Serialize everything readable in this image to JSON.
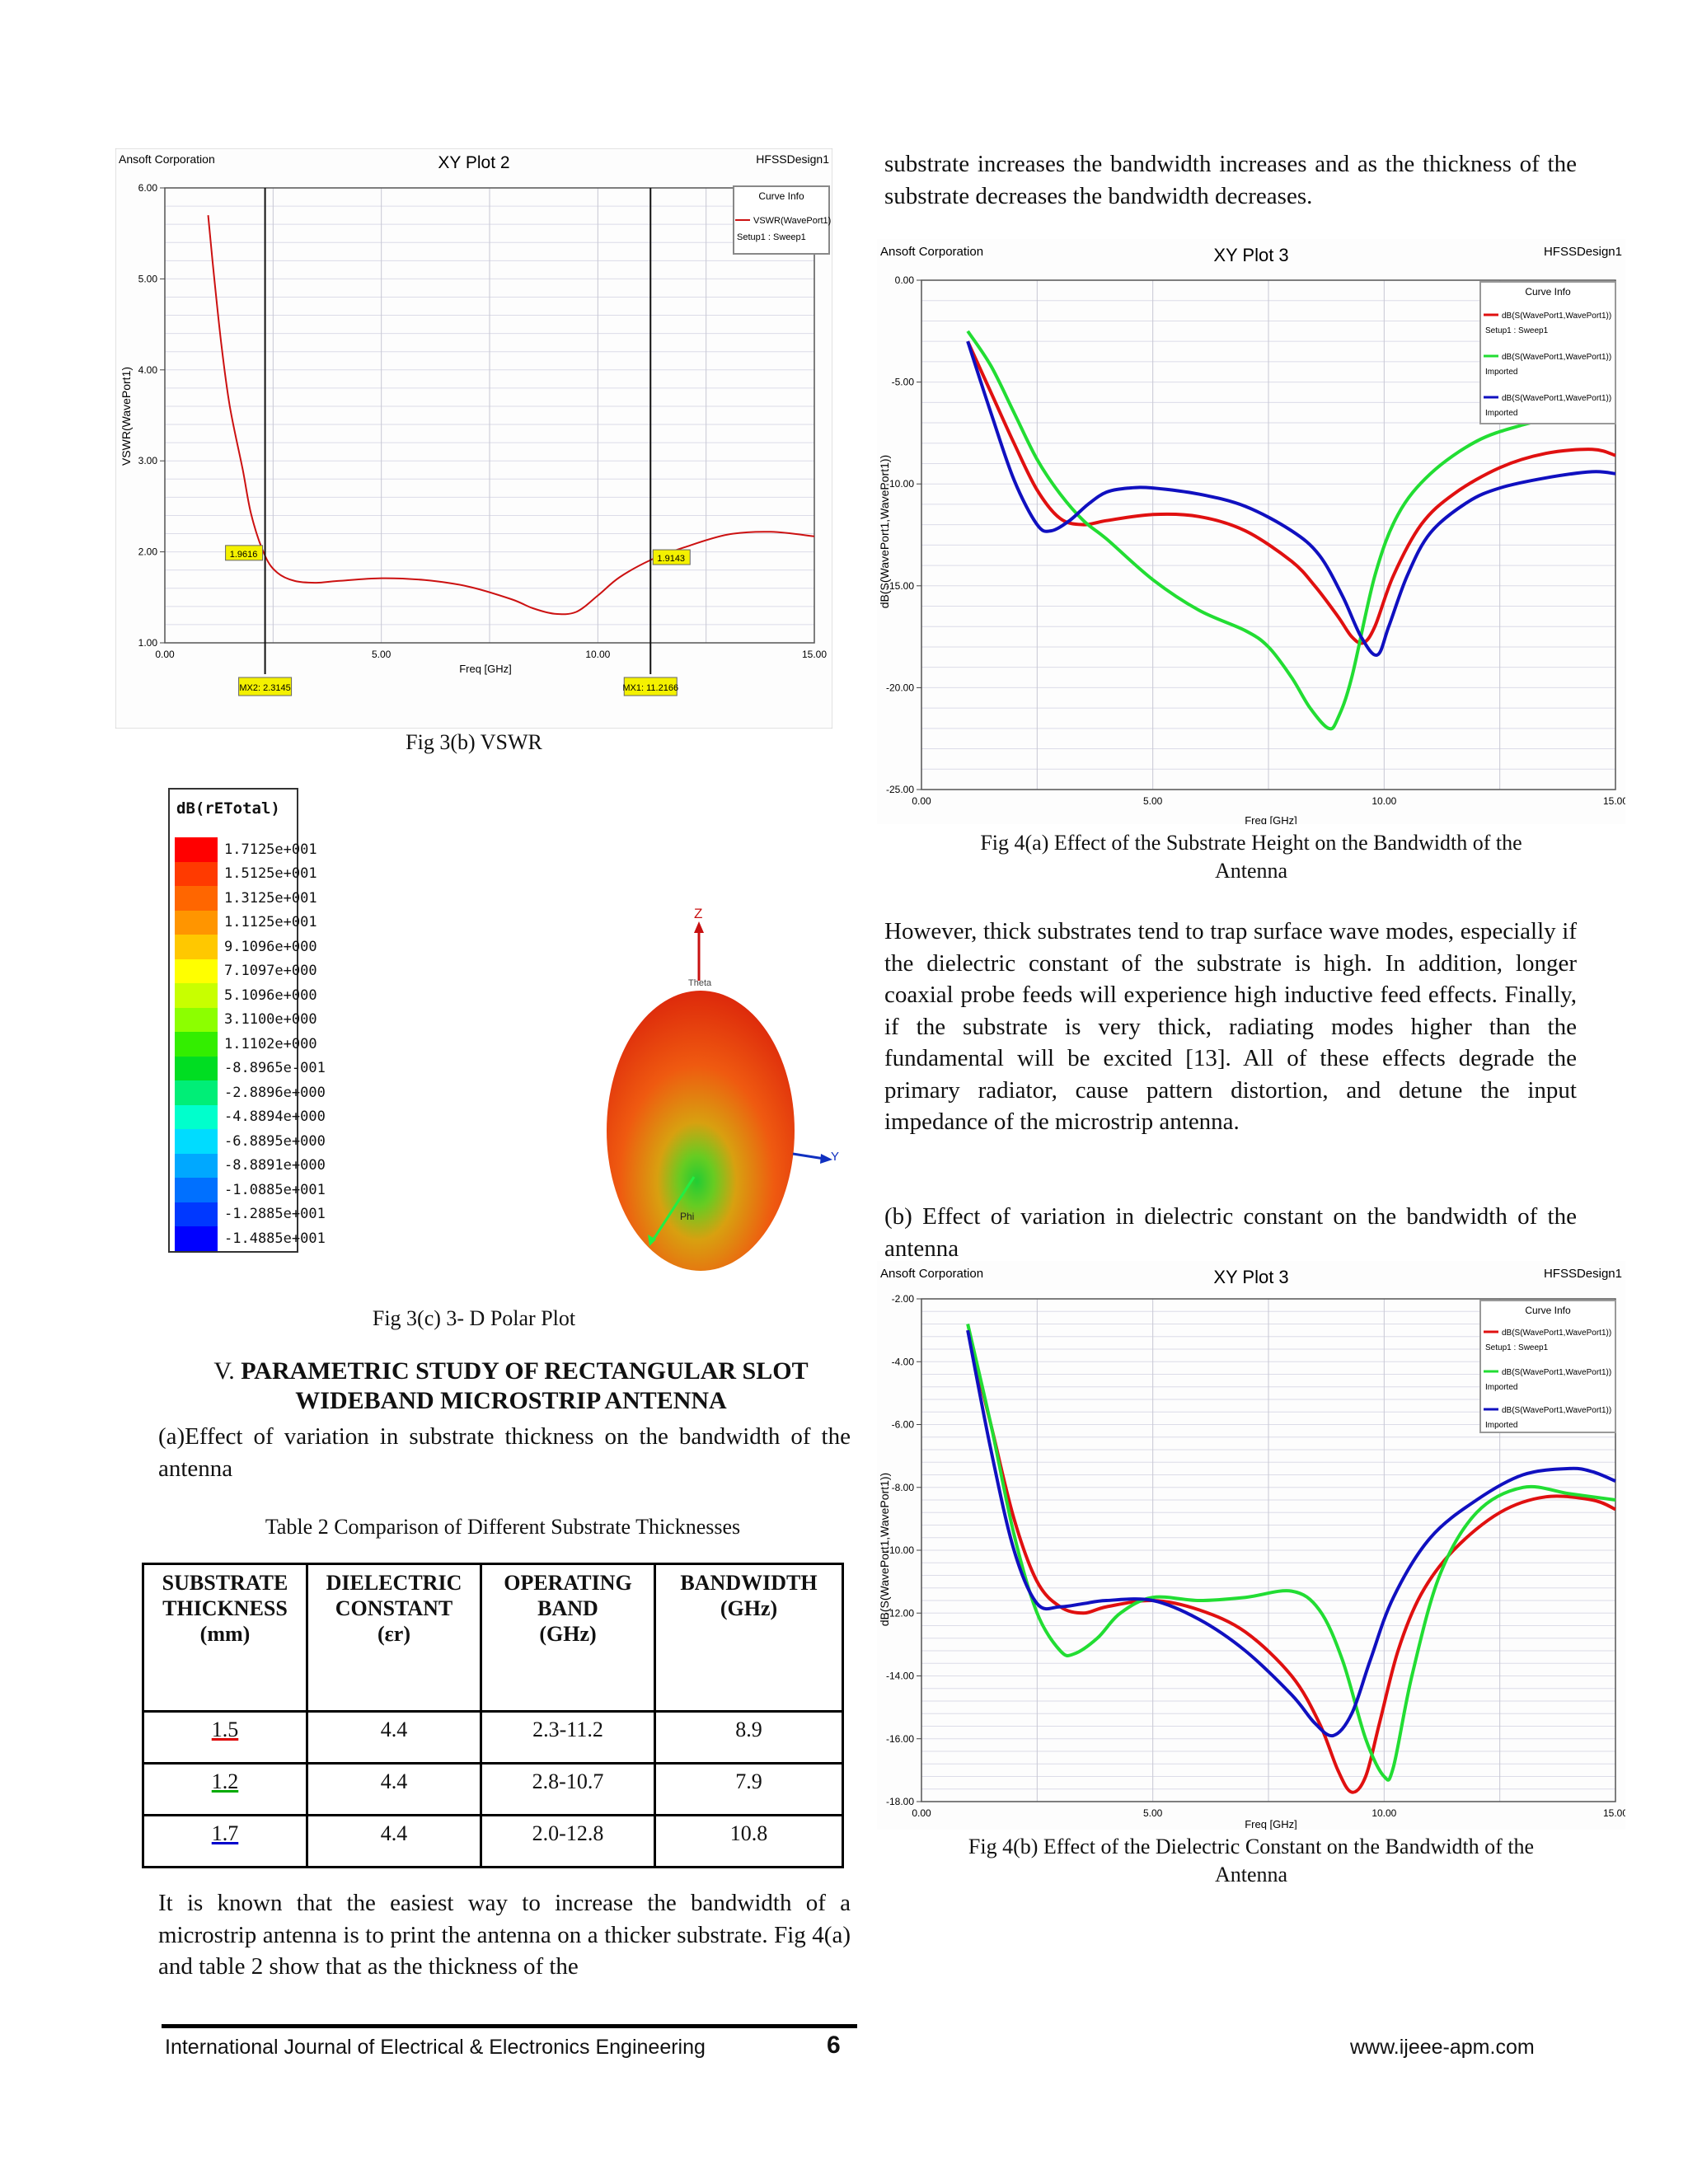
{
  "fig3b": {
    "caption": "Fig 3(b) VSWR",
    "company": "Ansoft Corporation",
    "title": "XY Plot 2",
    "design": "HFSSDesign1",
    "ylabel": "VSWR(WavePort1)",
    "xlabel": "Freq [GHz]",
    "legend_title": "Curve Info",
    "legend_line1": "VSWR(WavePort1)",
    "legend_line2": "Setup1 : Sweep1",
    "marker1_value": "1.9616",
    "marker2_value": "1.9143",
    "marker1_x": "MX2: 2.3145",
    "marker2_x": "MX1: 11.2166"
  },
  "fig3c": {
    "caption": "Fig 3(c) 3- D Polar Plot",
    "legend_title": "dB(rETotal)",
    "legend_values": [
      "1.7125e+001",
      "1.5125e+001",
      "1.3125e+001",
      "1.1125e+001",
      "9.1096e+000",
      "7.1097e+000",
      "5.1096e+000",
      "3.1100e+000",
      "1.1102e+000",
      "-8.8965e-001",
      "-2.8896e+000",
      "-4.8894e+000",
      "-6.8895e+000",
      "-8.8891e+000",
      "-1.0885e+001",
      "-1.2885e+001",
      "-1.4885e+001"
    ],
    "legend_colors": [
      "#ff0000",
      "#ff3a00",
      "#ff6600",
      "#ff9500",
      "#ffc800",
      "#ffff00",
      "#c8ff00",
      "#8cff00",
      "#33ee00",
      "#00dd22",
      "#00ee77",
      "#00ffcc",
      "#00dcff",
      "#00a8ff",
      "#0070ff",
      "#0038ff",
      "#0000ff"
    ],
    "axis_z": "Z",
    "axis_y": "Y",
    "theta_label": "Theta",
    "phi_label": "Phi"
  },
  "section": {
    "heading_num": "V.",
    "heading_line1": "PARAMETRIC STUDY OF RECTANGULAR SLOT",
    "heading_line2": "WIDEBAND MICROSTRIP ANTENNA",
    "sub_a": "(a)Effect of variation in substrate thickness on the bandwidth of the antenna"
  },
  "table2": {
    "caption": "Table 2 Comparison of Different Substrate Thicknesses",
    "headers": [
      [
        "SUBSTRATE",
        "THICKNESS",
        "(mm)"
      ],
      [
        "DIELECTRIC",
        "CONSTANT",
        "(εr)"
      ],
      [
        "OPERATING",
        "BAND",
        "(GHz)"
      ],
      [
        "BANDWIDTH",
        "(GHz)",
        ""
      ]
    ],
    "rows": [
      [
        "1.5",
        "4.4",
        "2.3-11.2",
        "8.9"
      ],
      [
        "1.2",
        "4.4",
        "2.8-10.7",
        "7.9"
      ],
      [
        "1.7",
        "4.4",
        "2.0-12.8",
        "10.8"
      ]
    ]
  },
  "left_para": "It is known that the easiest way to increase the bandwidth of a microstrip antenna is to print the antenna on a thicker substrate. Fig 4(a) and table 2 show that as the thickness of the",
  "right_para1": "substrate increases the bandwidth increases and as the thickness of the substrate decreases the bandwidth decreases.",
  "fig4a": {
    "caption_line1": "Fig 4(a) Effect of the Substrate Height on the Bandwidth of the",
    "caption_line2": "Antenna",
    "company": "Ansoft Corporation",
    "title": "XY Plot 3",
    "design": "HFSSDesign1",
    "ylabel": "dB(S(WavePort1,WavePort1))",
    "xlabel": "Freq [GHz]",
    "legend_title": "Curve Info",
    "legend": [
      {
        "name": "dB(S(WavePort1,WavePort1))",
        "sub": "Setup1 : Sweep1",
        "color": "#e01010"
      },
      {
        "name": "dB(S(WavePort1,WavePort1))",
        "sub": "Imported",
        "color": "#22dd33"
      },
      {
        "name": "dB(S(WavePort1,WavePort1))",
        "sub": "Imported",
        "color": "#1010c0"
      }
    ]
  },
  "right_para2": "However, thick substrates tend to trap surface wave modes, especially if the dielectric constant of the substrate is high. In addition, longer coaxial probe feeds will experience high inductive feed effects. Finally, if the substrate is very thick, radiating modes higher than the fundamental will be excited [13]. All of these effects degrade the primary radiator, cause pattern distortion, and detune the input impedance of the microstrip antenna.",
  "sub_b": "(b) Effect of variation in dielectric constant on the bandwidth of the antenna",
  "fig4b": {
    "caption_line1": "Fig 4(b) Effect of the Dielectric Constant on the Bandwidth of the",
    "caption_line2": "Antenna",
    "company": "Ansoft Corporation",
    "title": "XY Plot 3",
    "design": "HFSSDesign1",
    "ylabel": "dB(S(WavePort1,WavePort1))",
    "xlabel": "Freq [GHz]",
    "legend_title": "Curve Info",
    "legend": [
      {
        "name": "dB(S(WavePort1,WavePort1))",
        "sub": "Setup1 : Sweep1",
        "color": "#e01010"
      },
      {
        "name": "dB(S(WavePort1,WavePort1))",
        "sub": "Imported",
        "color": "#22dd33"
      },
      {
        "name": "dB(S(WavePort1,WavePort1))",
        "sub": "Imported",
        "color": "#1010c0"
      }
    ]
  },
  "footer": {
    "journal": "International Journal of Electrical & Electronics Engineering",
    "page": "6",
    "url": "www.ijeee-apm.com"
  },
  "chart_data": [
    {
      "id": "fig3b",
      "type": "line",
      "title": "XY Plot 2",
      "xlabel": "Freq [GHz]",
      "ylabel": "VSWR(WavePort1)",
      "xlim": [
        0,
        15
      ],
      "ylim": [
        1,
        6
      ],
      "xticks": [
        "0.00",
        "5.00",
        "10.00",
        "15.00"
      ],
      "yticks": [
        "1.00",
        "2.00",
        "3.00",
        "4.00",
        "5.00",
        "6.00"
      ],
      "grid": true,
      "legend_position": "top-right",
      "series": [
        {
          "name": "VSWR(WavePort1)",
          "color": "#cc1111",
          "x": [
            1.0,
            1.1,
            1.3,
            1.5,
            1.8,
            2.0,
            2.31,
            2.6,
            3.0,
            3.5,
            4.0,
            5.0,
            6.0,
            7.0,
            8.0,
            8.5,
            9.0,
            9.5,
            10.0,
            10.5,
            11.22,
            12.0,
            13.0,
            14.0,
            15.0
          ],
          "y": [
            5.7,
            5.2,
            4.3,
            3.6,
            2.9,
            2.4,
            1.96,
            1.77,
            1.68,
            1.66,
            1.68,
            1.71,
            1.69,
            1.62,
            1.48,
            1.38,
            1.32,
            1.34,
            1.52,
            1.72,
            1.91,
            2.05,
            2.19,
            2.22,
            2.17
          ]
        }
      ],
      "markers": [
        {
          "x": 2.3145,
          "y": 1.9616
        },
        {
          "x": 11.2166,
          "y": 1.9143
        }
      ]
    },
    {
      "id": "fig4a",
      "type": "line",
      "title": "XY Plot 3",
      "xlabel": "Freq [GHz]",
      "ylabel": "dB(S(WavePort1,WavePort1))",
      "xlim": [
        0,
        15
      ],
      "ylim": [
        -25,
        0
      ],
      "xticks": [
        "0.00",
        "5.00",
        "10.00",
        "15.00"
      ],
      "yticks": [
        "-25.00",
        "-20.00",
        "-15.00",
        "-10.00",
        "-5.00",
        "0.00"
      ],
      "grid": true,
      "legend_position": "top-right",
      "series": [
        {
          "name": "dB(S(WavePort1,WavePort1)) Setup1 : Sweep1",
          "color": "#e01010",
          "x": [
            1.0,
            1.5,
            2.0,
            2.5,
            3.0,
            3.5,
            4.0,
            5.0,
            6.0,
            7.0,
            8.0,
            8.5,
            9.0,
            9.3,
            9.55,
            9.8,
            10.2,
            10.8,
            11.5,
            12.5,
            13.5,
            14.5,
            15.0
          ],
          "y": [
            -3.0,
            -5.5,
            -8.0,
            -10.3,
            -11.7,
            -12.0,
            -11.8,
            -11.5,
            -11.6,
            -12.3,
            -13.8,
            -15.0,
            -16.5,
            -17.5,
            -17.8,
            -17.0,
            -14.5,
            -12.0,
            -10.5,
            -9.2,
            -8.5,
            -8.3,
            -8.6
          ]
        },
        {
          "name": "dB(S(WavePort1,WavePort1)) Imported",
          "color": "#22dd33",
          "x": [
            1.0,
            1.5,
            2.0,
            2.5,
            3.0,
            3.5,
            4.0,
            5.0,
            6.0,
            7.0,
            7.5,
            8.0,
            8.4,
            8.8,
            9.0,
            9.3,
            9.8,
            10.3,
            11.0,
            12.0,
            13.0,
            14.0,
            15.0
          ],
          "y": [
            -2.5,
            -4.2,
            -6.5,
            -8.8,
            -10.5,
            -11.8,
            -12.7,
            -14.7,
            -16.2,
            -17.2,
            -18.0,
            -19.5,
            -21.0,
            -22.0,
            -21.5,
            -19.5,
            -14.5,
            -11.5,
            -9.5,
            -7.9,
            -7.1,
            -6.6,
            -6.3
          ]
        },
        {
          "name": "dB(S(WavePort1,WavePort1)) Imported",
          "color": "#1010c0",
          "x": [
            1.0,
            1.5,
            2.0,
            2.5,
            2.8,
            3.2,
            3.6,
            4.0,
            4.5,
            5.0,
            6.0,
            7.0,
            8.0,
            8.6,
            9.1,
            9.5,
            9.85,
            10.1,
            10.5,
            11.0,
            11.8,
            12.5,
            13.5,
            14.5,
            15.0
          ],
          "y": [
            -3.0,
            -6.5,
            -9.8,
            -12.0,
            -12.3,
            -11.8,
            -11.0,
            -10.4,
            -10.2,
            -10.2,
            -10.5,
            -11.1,
            -12.3,
            -13.5,
            -15.5,
            -17.5,
            -18.4,
            -17.0,
            -14.5,
            -12.4,
            -10.9,
            -10.2,
            -9.7,
            -9.4,
            -9.5
          ]
        }
      ]
    },
    {
      "id": "fig4b",
      "type": "line",
      "title": "XY Plot 3",
      "xlabel": "Freq [GHz]",
      "ylabel": "dB(S(WavePort1,WavePort1))",
      "xlim": [
        0,
        15
      ],
      "ylim": [
        -18,
        -2
      ],
      "xticks": [
        "0.00",
        "5.00",
        "10.00",
        "15.00"
      ],
      "yticks": [
        "-18.00",
        "-16.00",
        "-14.00",
        "-12.00",
        "-10.00",
        "-8.00",
        "-6.00",
        "-4.00",
        "-2.00"
      ],
      "grid": true,
      "legend_position": "top-right",
      "series": [
        {
          "name": "dB(S(WavePort1,WavePort1)) Setup1 : Sweep1",
          "color": "#e01010",
          "x": [
            1.0,
            1.5,
            2.0,
            2.5,
            3.0,
            3.5,
            4.0,
            5.0,
            6.0,
            7.0,
            8.0,
            8.6,
            9.0,
            9.3,
            9.6,
            9.9,
            10.3,
            10.8,
            11.5,
            12.5,
            13.5,
            14.5,
            15.0
          ],
          "y": [
            -3.0,
            -6.0,
            -9.0,
            -11.0,
            -11.8,
            -12.0,
            -11.8,
            -11.6,
            -11.9,
            -12.6,
            -14.0,
            -15.5,
            -17.0,
            -17.7,
            -17.2,
            -15.5,
            -13.2,
            -11.4,
            -10.0,
            -8.8,
            -8.3,
            -8.4,
            -8.7
          ]
        },
        {
          "name": "dB(S(WavePort1,WavePort1)) Imported",
          "color": "#22dd33",
          "x": [
            1.0,
            1.5,
            2.0,
            2.5,
            3.0,
            3.3,
            3.8,
            4.3,
            5.0,
            6.0,
            7.0,
            8.0,
            8.6,
            9.1,
            9.6,
            10.0,
            10.2,
            10.6,
            11.2,
            12.0,
            13.0,
            14.0,
            15.0
          ],
          "y": [
            -2.8,
            -6.0,
            -9.5,
            -12.0,
            -13.2,
            -13.3,
            -12.8,
            -12.0,
            -11.5,
            -11.6,
            -11.5,
            -11.3,
            -11.9,
            -13.5,
            -16.0,
            -17.2,
            -16.9,
            -14.0,
            -10.8,
            -8.8,
            -8.0,
            -8.2,
            -8.4
          ]
        },
        {
          "name": "dB(S(WavePort1,WavePort1)) Imported",
          "color": "#1010c0",
          "x": [
            1.0,
            1.5,
            2.0,
            2.5,
            3.0,
            3.5,
            4.0,
            5.0,
            6.0,
            7.0,
            8.0,
            8.5,
            8.9,
            9.3,
            9.7,
            10.2,
            11.0,
            12.0,
            13.0,
            14.0,
            14.5,
            15.0
          ],
          "y": [
            -3.0,
            -6.8,
            -10.0,
            -11.7,
            -11.8,
            -11.7,
            -11.6,
            -11.6,
            -12.2,
            -13.2,
            -14.6,
            -15.5,
            -15.9,
            -15.2,
            -13.5,
            -11.5,
            -9.6,
            -8.4,
            -7.6,
            -7.4,
            -7.5,
            -7.8
          ]
        }
      ]
    }
  ]
}
